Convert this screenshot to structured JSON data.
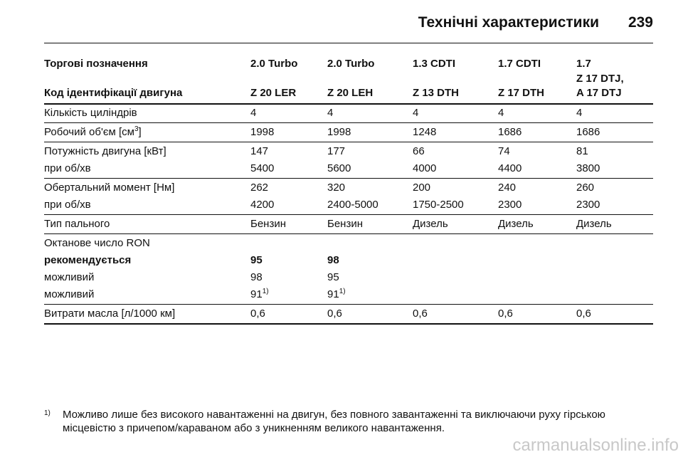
{
  "header": {
    "title": "Технічні характеристики",
    "page_number": "239"
  },
  "table": {
    "designation_row": [
      "Торгові позначення",
      "2.0 Turbo",
      "2.0 Turbo",
      "1.3 CDTI",
      "1.7 CDTI",
      "1.7"
    ],
    "code_row": [
      "Код ідентифікації двигуна",
      "Z 20 LER",
      "Z 20 LEH",
      "Z 13 DTH",
      "Z 17 DTH",
      [
        "Z 17 DTJ,",
        "A 17 DTJ"
      ]
    ],
    "groups": [
      {
        "rows": [
          {
            "cells": [
              "Кількість циліндрів",
              "4",
              "4",
              "4",
              "4",
              "4"
            ]
          }
        ]
      },
      {
        "rows": [
          {
            "cells": [
              {
                "text": "Робочий об'єм [см",
                "sup": "3",
                "after": "]"
              },
              "1998",
              "1998",
              "1248",
              "1686",
              "1686"
            ]
          }
        ]
      },
      {
        "rows": [
          {
            "cells": [
              "Потужність двигуна [кВт]",
              "147",
              "177",
              "66",
              "74",
              "81"
            ]
          },
          {
            "cells": [
              "при об/хв",
              "5400",
              "5600",
              "4000",
              "4400",
              "3800"
            ]
          }
        ]
      },
      {
        "rows": [
          {
            "cells": [
              "Обертальний момент [Нм]",
              "262",
              "320",
              "200",
              "240",
              "260"
            ]
          },
          {
            "cells": [
              "при об/хв",
              "4200",
              "2400-5000",
              "1750-2500",
              "2300",
              "2300"
            ]
          }
        ]
      },
      {
        "rows": [
          {
            "cells": [
              "Тип пального",
              "Бензин",
              "Бензин",
              "Дизель",
              "Дизель",
              "Дизель"
            ]
          }
        ]
      },
      {
        "rows": [
          {
            "cells": [
              "Октанове число RON"
            ]
          },
          {
            "cells": [
              "рекомендується",
              "95",
              "98"
            ],
            "bold": true
          },
          {
            "cells": [
              "можливий",
              "98",
              "95"
            ]
          },
          {
            "cells": [
              "можливий",
              {
                "text": "91",
                "sup": "1)"
              },
              {
                "text": "91",
                "sup": "1)"
              }
            ]
          }
        ]
      },
      {
        "rows": [
          {
            "cells": [
              "Витрати масла [л/1000 км]",
              "0,6",
              "0,6",
              "0,6",
              "0,6",
              "0,6"
            ]
          }
        ]
      }
    ]
  },
  "footnote": {
    "mark": "1)",
    "lines": [
      "Можливо лише без високого навантаженні на двигун, без повного завантаженні та виключаючи руху гірською",
      "місцевістю з причепом/караваном або з уникненням великого навантаження."
    ]
  },
  "watermark": "carmanualsonline.info"
}
